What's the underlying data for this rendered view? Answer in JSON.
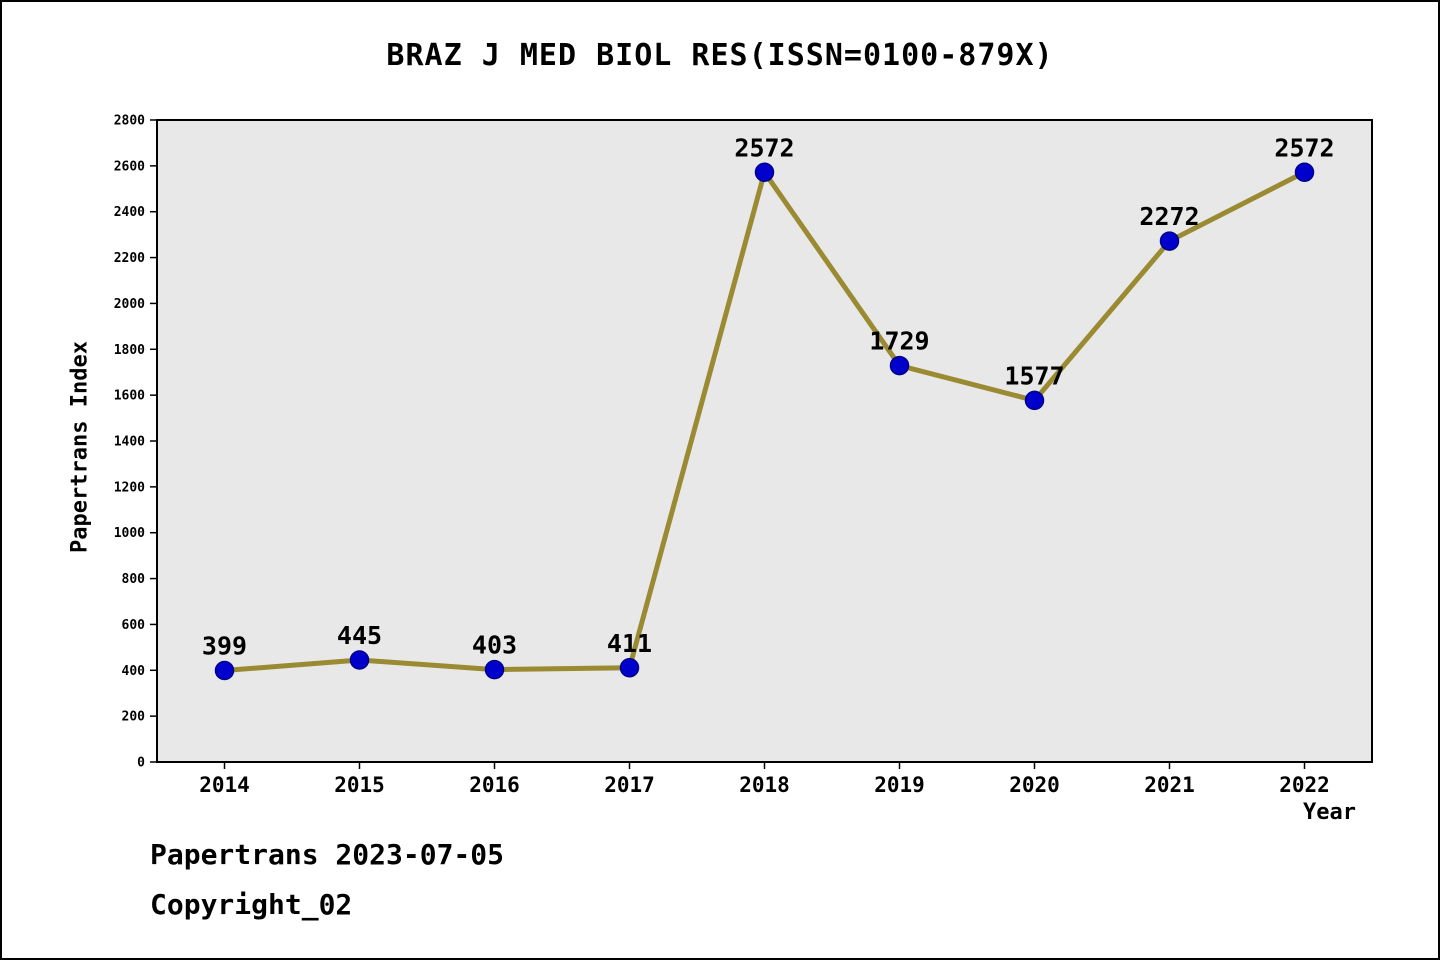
{
  "chart_data": {
    "type": "line",
    "title": "BRAZ J MED BIOL RES(ISSN=0100-879X)",
    "x": [
      2014,
      2015,
      2016,
      2017,
      2018,
      2019,
      2020,
      2021,
      2022
    ],
    "values": [
      399,
      445,
      403,
      411,
      2572,
      1729,
      1577,
      2272,
      2572
    ],
    "xlabel": "Year",
    "ylabel": "Papertrans Index",
    "ylim": [
      0,
      2800
    ],
    "ytick_step": 200,
    "grid": "off",
    "legend": "none",
    "line_color": "#9a8b32",
    "marker_color": "#0000cc",
    "marker_edge_color": "#00008b",
    "plot_bg": "#e8e8e8",
    "frame_color": "#000000"
  },
  "footer": {
    "line1": "Papertrans 2023-07-05",
    "line2": "Copyright_02"
  }
}
